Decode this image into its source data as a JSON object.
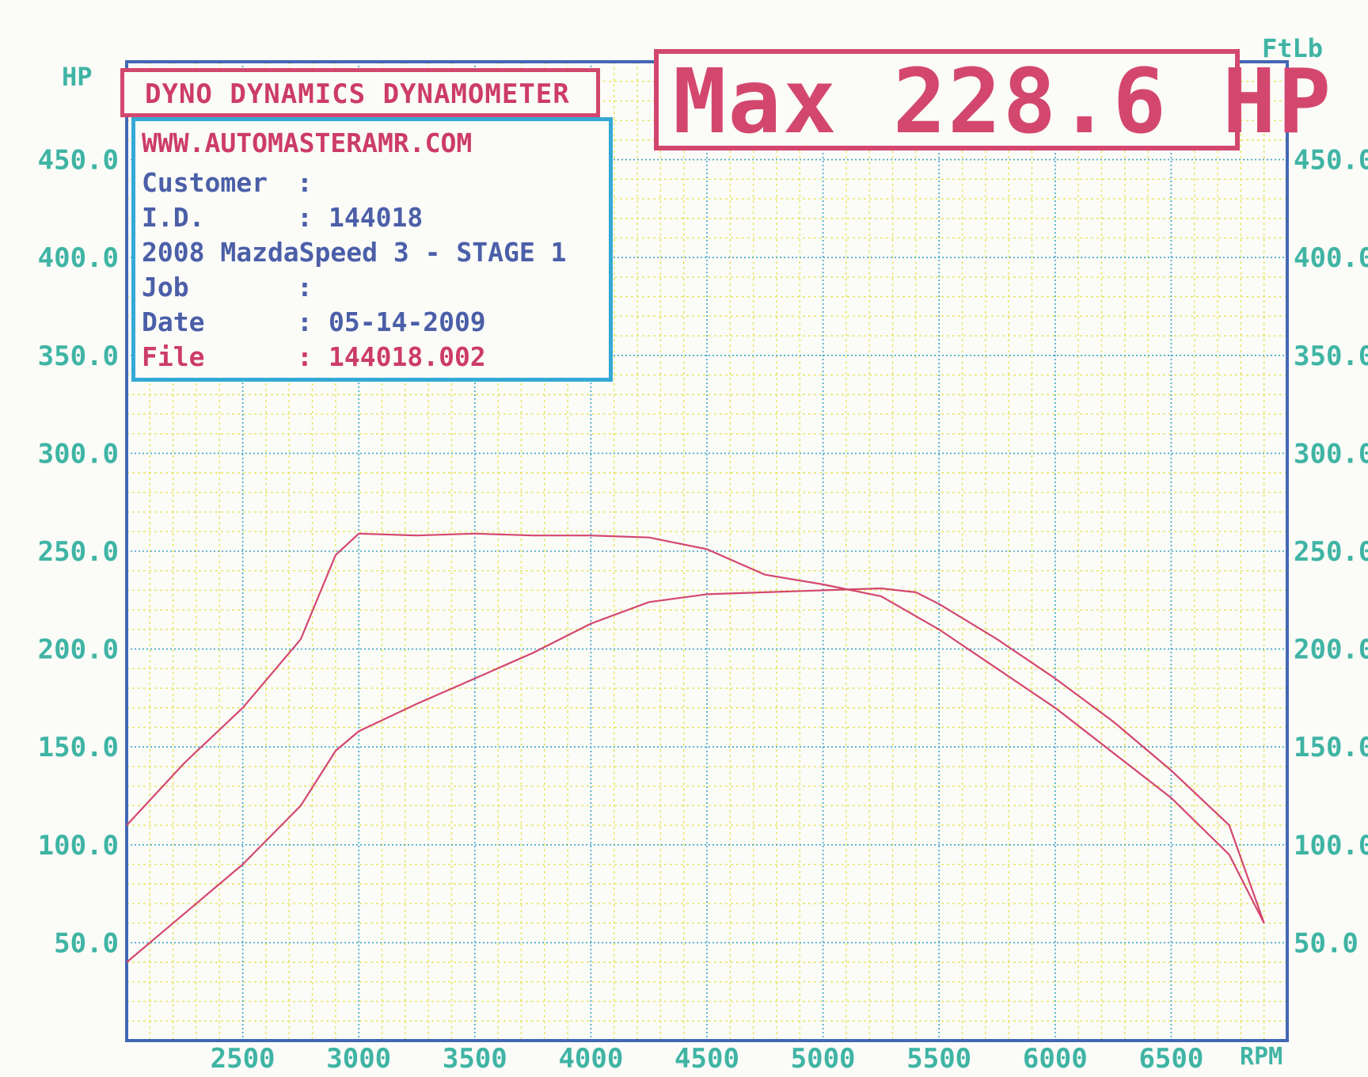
{
  "chart_data": {
    "type": "line",
    "title": "DYNO DYNAMICS DYNAMOMETER",
    "max_banner": "Max 228.6 HP",
    "left_axis": {
      "label": "HP",
      "ylim": [
        0,
        500
      ],
      "ticks": [
        50,
        100,
        150,
        200,
        250,
        300,
        350,
        400,
        450
      ],
      "tick_labels": [
        "50.0",
        "100.0",
        "150.0",
        "200.0",
        "250.0",
        "300.0",
        "350.0",
        "400.0",
        "450.0"
      ]
    },
    "right_axis": {
      "label": "FtLb",
      "ylim": [
        0,
        500
      ],
      "ticks": [
        50,
        100,
        150,
        200,
        250,
        300,
        350,
        400,
        450
      ],
      "tick_labels": [
        "50.0",
        "100.0",
        "150.0",
        "200.0",
        "250.0",
        "300.0",
        "350.0",
        "400.0",
        "450.0"
      ]
    },
    "x_axis": {
      "label": "RPM",
      "xlim": [
        2000,
        7000
      ],
      "ticks": [
        2500,
        3000,
        3500,
        4000,
        4500,
        5000,
        5500,
        6000,
        6500
      ],
      "tick_labels": [
        "2500",
        "3000",
        "3500",
        "4000",
        "4500",
        "5000",
        "5500",
        "6000",
        "6500"
      ]
    },
    "grid": true,
    "series": [
      {
        "axis": "left",
        "color": "#d3476e",
        "x": [
          2000,
          2250,
          2500,
          2750,
          2900,
          3000,
          3250,
          3500,
          3750,
          4000,
          4250,
          4500,
          4750,
          5000,
          5250,
          5400,
          5500,
          5750,
          6000,
          6250,
          6500,
          6750,
          6900
        ],
        "values": [
          40,
          65,
          90,
          120,
          148,
          158,
          172,
          185,
          198,
          213,
          224,
          228,
          229,
          230,
          231,
          229,
          223,
          205,
          185,
          163,
          138,
          110,
          60
        ]
      },
      {
        "axis": "right",
        "color": "#d3476e",
        "x": [
          2000,
          2250,
          2500,
          2750,
          2900,
          3000,
          3250,
          3500,
          3750,
          4000,
          4250,
          4500,
          4750,
          5000,
          5250,
          5500,
          5750,
          6000,
          6250,
          6500,
          6750,
          6900
        ],
        "values": [
          110,
          142,
          170,
          205,
          248,
          259,
          258,
          259,
          258,
          258,
          257,
          251,
          238,
          233,
          227,
          210,
          190,
          170,
          147,
          124,
          95,
          60
        ]
      }
    ]
  },
  "info": {
    "website": "WWW.AUTOMASTERAMR.COM",
    "rows": [
      {
        "key": "Customer",
        "sep": ":",
        "value": ""
      },
      {
        "key": "I.D.",
        "sep": ":",
        "value": "144018"
      },
      {
        "key": "",
        "sep": "",
        "value": "2008 MazdaSpeed 3 - STAGE 1"
      },
      {
        "key": "Job",
        "sep": ":",
        "value": ""
      },
      {
        "key": "Date",
        "sep": ":",
        "value": "05-14-2009"
      },
      {
        "key": "File",
        "sep": ":",
        "value": "144018.002"
      }
    ]
  },
  "colors": {
    "grid_major": "#3aa6c4",
    "grid_minor": "#e6e45a",
    "frame": "#4267b5",
    "curve": "#d3476e",
    "axis_text": "#3fb4a4"
  }
}
